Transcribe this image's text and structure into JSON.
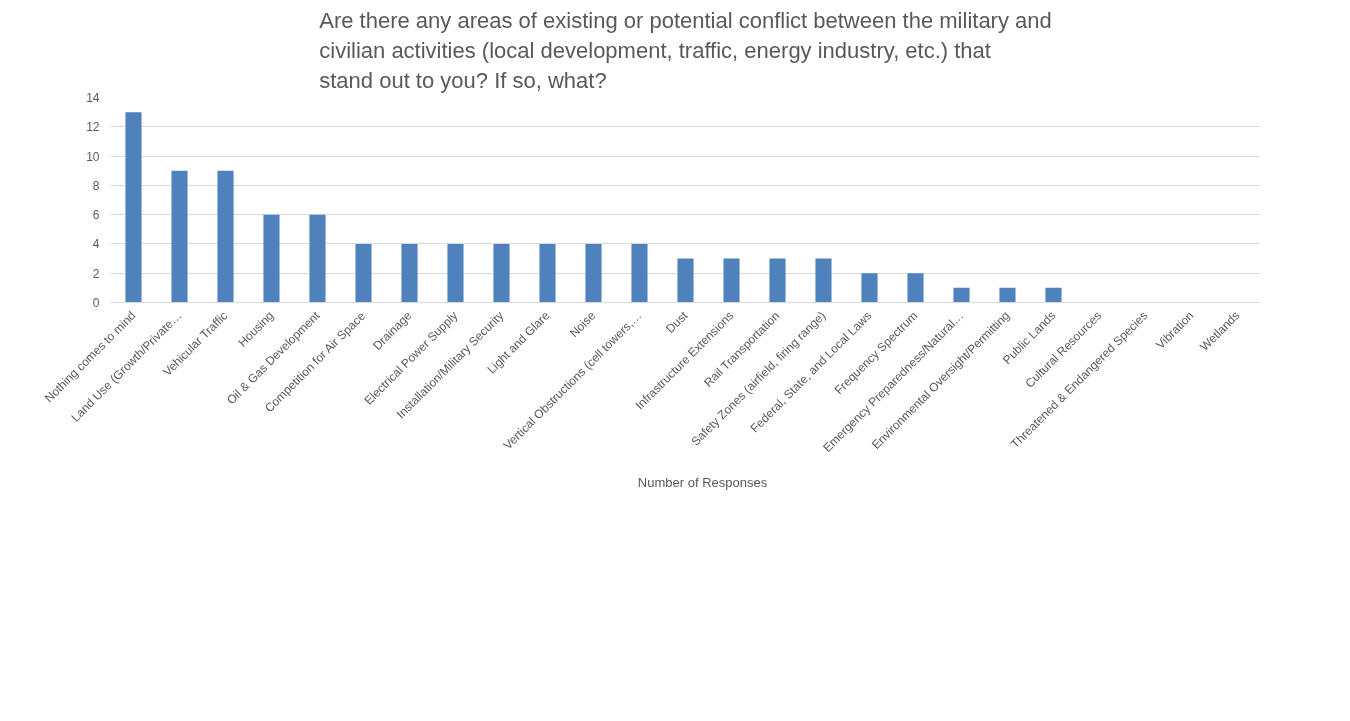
{
  "chart_data": {
    "type": "bar",
    "title": "Are there any areas of existing or potential conflict between the military and civilian activities (local development, traffic, energy industry, etc.) that stand out to you? If so, what?",
    "categories": [
      "Nothing comes to mind",
      "Land Use (Growth/Private…",
      "Vehicular Traffic",
      "Housing",
      "Oil & Gas Development",
      "Competition for Air Space",
      "Drainage",
      "Electrical Power Supply",
      "Installation/Military Security",
      "Light and Glare",
      "Noise",
      "Vertical Obstructions (cell towers,…",
      "Dust",
      "Infrastructure Extensions",
      "Rail Transportation",
      "Safety Zones (airfield, firing range)",
      "Federal, State, and Local Laws",
      "Frequency Spectrum",
      "Emergency Preparedness/Natural…",
      "Environmental Oversight/Permitting",
      "Public Lands",
      "Cultural Resources",
      "Threatened & Endangered Species",
      "Vibration",
      "Wetlands"
    ],
    "series": [
      {
        "name": "Number of Responses",
        "color": "#4f81bd",
        "values": [
          13,
          9,
          9,
          6,
          6,
          4,
          4,
          4,
          4,
          4,
          4,
          4,
          3,
          3,
          3,
          3,
          2,
          2,
          1,
          1,
          1,
          0,
          0,
          0,
          0
        ]
      }
    ],
    "ylim": [
      0,
      14
    ],
    "yticks": [
      0,
      2,
      4,
      6,
      8,
      10,
      12,
      14
    ],
    "grid": "y",
    "legend": "bottom"
  }
}
